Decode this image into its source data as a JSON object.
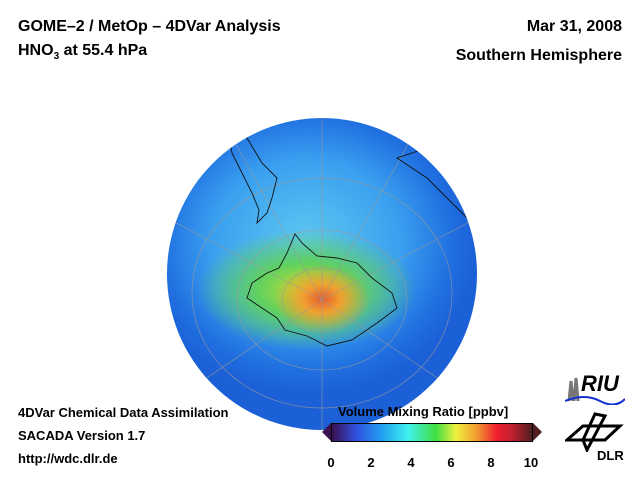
{
  "header": {
    "title_line1": "GOME–2 / MetOp – 4DVar Analysis",
    "title_line2_prefix": "HNO",
    "title_line2_sub": "3",
    "title_line2_suffix": " at 55.4 hPa",
    "date": "Mar 31, 2008",
    "region": "Southern Hemisphere"
  },
  "footer": {
    "line1": "4DVar Chemical Data Assimilation",
    "line2": "SACADA Version 1.7",
    "line3": "http://wdc.dlr.de"
  },
  "colorbar": {
    "title": "Volume Mixing Ratio [ppbv]",
    "ticks": [
      "0",
      "2",
      "4",
      "6",
      "8",
      "10"
    ],
    "min": 0,
    "max": 10,
    "low_color": "#3a1050",
    "high_color": "#502020"
  },
  "logos": {
    "riu": "RIU",
    "dlr": "DLR"
  }
}
